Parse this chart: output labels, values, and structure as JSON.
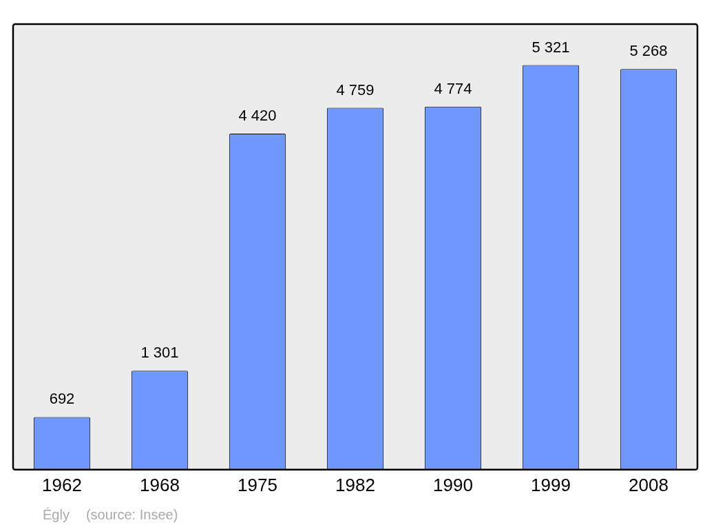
{
  "chart_data": {
    "type": "bar",
    "categories": [
      "1962",
      "1968",
      "1975",
      "1982",
      "1990",
      "1999",
      "2008"
    ],
    "values": [
      692,
      1301,
      4420,
      4759,
      4774,
      5321,
      5268
    ],
    "value_labels": [
      "692",
      "1 301",
      "4 420",
      "4 759",
      "4 774",
      "5 321",
      "5 268"
    ],
    "color": "#7099ff",
    "ylim": [
      0,
      5860
    ],
    "grid": false,
    "legend": false,
    "annotations": [
      "Égly",
      "(source: Insee)"
    ]
  }
}
